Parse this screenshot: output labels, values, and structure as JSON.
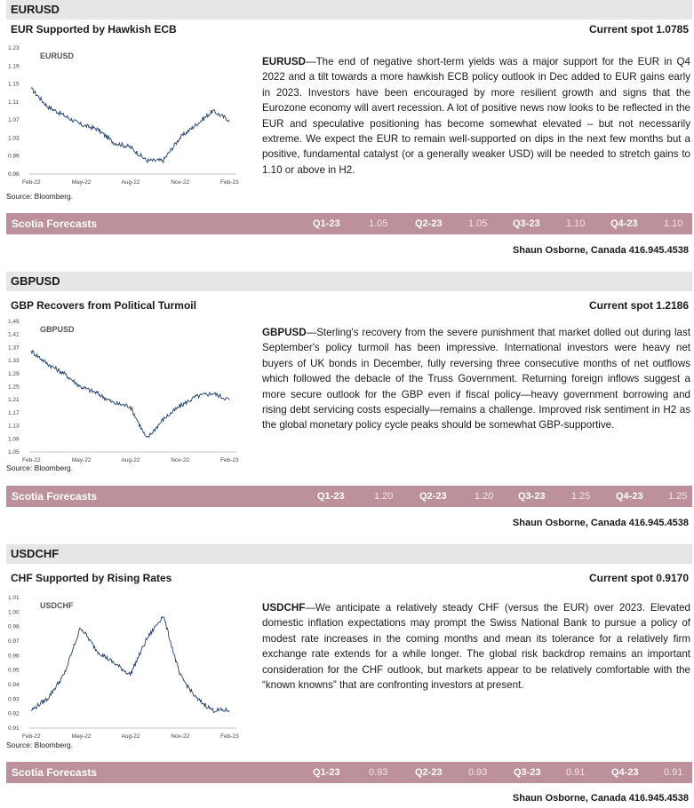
{
  "sections": [
    {
      "pair": "EURUSD",
      "subtitle": "EUR Supported by Hawkish ECB",
      "current_spot": "Current spot 1.0785",
      "chart_label": "EURUSD",
      "source": "Source: Bloomberg.",
      "lead": "EURUSD",
      "body": "—The end of negative short-term yields was a major support for the EUR in Q4 2022 and a tilt towards a more hawkish ECB policy outlook in Dec added to EUR gains early in 2023. Investors have been encouraged by more resilient growth and signs that the Eurozone economy will avert recession. A lot of positive news now looks to be reflected in the EUR and speculative positioning has become somewhat elevated – but not necessarily extreme. We expect the EUR to remain well-supported on dips in the next few months but a positive, fundamental catalyst (or a generally weaker USD) will be needed to stretch gains to 1.10 or above in H2.",
      "forecast_title": "Scotia Forecasts",
      "forecasts": [
        {
          "quarter": "Q1-23",
          "value": "1.05"
        },
        {
          "quarter": "Q2-23",
          "value": "1.05"
        },
        {
          "quarter": "Q3-23",
          "value": "1.10"
        },
        {
          "quarter": "Q4-23",
          "value": "1.10"
        }
      ],
      "author": "Shaun Osborne, Canada 416.945.4538"
    },
    {
      "pair": "GBPUSD",
      "subtitle": "GBP Recovers from Political Turmoil",
      "current_spot": "Current spot 1.2186",
      "chart_label": "GBPUSD",
      "source": "Source: Bloomberg.",
      "lead": "GBPUSD",
      "body": "—Sterling's recovery from the severe punishment that market dolled out during last September's policy turmoil has been impressive. International investors were heavy net buyers of UK bonds in December, fully reversing three consecutive months of net outflows which followed the debacle of the Truss Government. Returning foreign inflows suggest a more secure outlook for the GBP even if fiscal policy—heavy government borrowing and rising debt servicing costs especially—remains a challenge. Improved risk sentiment in H2 as the global monetary policy cycle peaks should be somewhat GBP-supportive.",
      "forecast_title": "Scotia Forecasts",
      "forecasts": [
        {
          "quarter": "Q1-23",
          "value": "1.20"
        },
        {
          "quarter": "Q2-23",
          "value": "1.20"
        },
        {
          "quarter": "Q3-23",
          "value": "1.25"
        },
        {
          "quarter": "Q4-23",
          "value": "1.25"
        }
      ],
      "author": "Shaun Osborne, Canada 416.945.4538"
    },
    {
      "pair": "USDCHF",
      "subtitle": "CHF Supported by Rising Rates",
      "current_spot": "Current spot 0.9170",
      "chart_label": "USDCHF",
      "source": "Source: Bloomberg.",
      "lead": "USDCHF",
      "body": "—We anticipate a relatively steady CHF (versus the EUR) over 2023. Elevated domestic inflation expectations may prompt the Swiss National Bank to pursue a policy of modest rate increases in the coming months and mean its tolerance for a relatively firm exchange rate extends for a while longer. The global risk backdrop remains an important consideration for the CHF outlook, but markets appear to be relatively comfortable with the “known knowns” that are confronting investors at present.",
      "forecast_title": "Scotia Forecasts",
      "forecasts": [
        {
          "quarter": "Q1-23",
          "value": "0.93"
        },
        {
          "quarter": "Q2-23",
          "value": "0.93"
        },
        {
          "quarter": "Q3-23",
          "value": "0.91"
        },
        {
          "quarter": "Q4-23",
          "value": "0.91"
        }
      ],
      "author": "Shaun Osborne, Canada 416.945.4538"
    }
  ],
  "chart_data": [
    {
      "type": "line",
      "series": [
        {
          "name": "EURUSD",
          "x": [
            "2022-02",
            "2022-03",
            "2022-04",
            "2022-05",
            "2022-06",
            "2022-07",
            "2022-08",
            "2022-09",
            "2022-10",
            "2022-11",
            "2022-12",
            "2023-01",
            "2023-02"
          ],
          "values": [
            1.14,
            1.1,
            1.08,
            1.06,
            1.05,
            1.02,
            1.01,
            0.98,
            0.98,
            1.03,
            1.06,
            1.09,
            1.07
          ]
        }
      ],
      "xticks": [
        "Feb-22",
        "May-22",
        "Aug-22",
        "Nov-22",
        "Feb-23"
      ],
      "yticks": [
        "1.23",
        "1.19",
        "1.15",
        "1.11",
        "1.07",
        "1.03",
        "0.99",
        "0.96"
      ],
      "ylim": [
        0.95,
        1.23
      ]
    },
    {
      "type": "line",
      "series": [
        {
          "name": "GBPUSD",
          "x": [
            "2022-02",
            "2022-03",
            "2022-04",
            "2022-05",
            "2022-06",
            "2022-07",
            "2022-08",
            "2022-09",
            "2022-10",
            "2022-11",
            "2022-12",
            "2023-01",
            "2023-02"
          ],
          "values": [
            1.36,
            1.32,
            1.29,
            1.25,
            1.23,
            1.2,
            1.19,
            1.09,
            1.15,
            1.19,
            1.22,
            1.23,
            1.21
          ]
        }
      ],
      "xticks": [
        "Feb-22",
        "May-22",
        "Aug-22",
        "Nov-22",
        "Feb-23"
      ],
      "yticks": [
        "1.45",
        "1.41",
        "1.37",
        "1.33",
        "1.29",
        "1.25",
        "1.21",
        "1.17",
        "1.13",
        "1.09",
        "1.05"
      ],
      "ylim": [
        1.05,
        1.45
      ]
    },
    {
      "type": "line",
      "series": [
        {
          "name": "USDCHF",
          "x": [
            "2022-02",
            "2022-03",
            "2022-04",
            "2022-05",
            "2022-06",
            "2022-07",
            "2022-08",
            "2022-09",
            "2022-10",
            "2022-11",
            "2022-12",
            "2023-01",
            "2023-02"
          ],
          "values": [
            0.92,
            0.93,
            0.95,
            0.99,
            0.97,
            0.96,
            0.95,
            0.98,
            1.0,
            0.95,
            0.93,
            0.92,
            0.92
          ]
        }
      ],
      "xticks": [
        "Feb-22",
        "May-22",
        "Aug-22",
        "Nov-22",
        "Feb-23"
      ],
      "yticks": [
        "1.01",
        "1.00",
        "0.98",
        "0.97",
        "0.96",
        "0.95",
        "0.94",
        "0.93",
        "0.92",
        "0.91"
      ],
      "ylim": [
        0.905,
        1.015
      ]
    }
  ]
}
